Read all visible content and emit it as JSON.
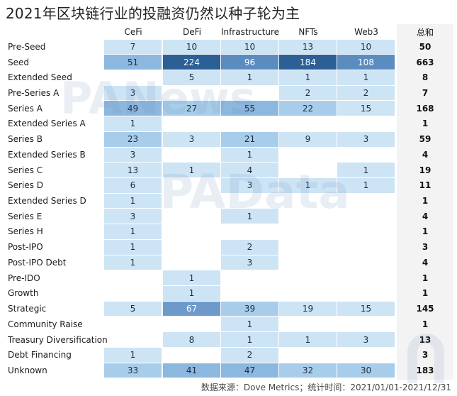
{
  "title": "2021年区块链行业的投融资仍然以种子轮为主",
  "footer": "数据来源：Dove Metrics；统计时间：2021/01/01-2021/12/31",
  "total_label": "总和",
  "watermarks": [
    "PANews",
    "PAData"
  ],
  "colors": {
    "low": "#cfe6f6",
    "mid": "#9ec8e8",
    "high": "#5b8cc0",
    "max": "#2b5f95",
    "total_bg": "#f3f3f3"
  },
  "chart_data": {
    "type": "heatmap",
    "title": "2021年区块链行业的投融资仍然以种子轮为主",
    "columns": [
      "CeFi",
      "DeFi",
      "Infrastructure",
      "NFTs",
      "Web3"
    ],
    "rows": [
      "Pre-Seed",
      "Seed",
      "Extended Seed",
      "Pre-Series A",
      "Series A",
      "Extended Series A",
      "Series B",
      "Extended Series B",
      "Series C",
      "Series D",
      "Extended Series D",
      "Series E",
      "Series H",
      "Post-IPO",
      "Post-IPO Debt",
      "Pre-IDO",
      "Growth",
      "Strategic",
      "Community Raise",
      "Treasury Diversification",
      "Debt Financing",
      "Unknown"
    ],
    "values": [
      [
        7,
        10,
        10,
        13,
        10
      ],
      [
        51,
        224,
        96,
        184,
        108
      ],
      [
        null,
        5,
        1,
        1,
        1
      ],
      [
        3,
        null,
        null,
        2,
        2
      ],
      [
        49,
        27,
        55,
        22,
        15
      ],
      [
        1,
        null,
        null,
        null,
        null
      ],
      [
        23,
        3,
        21,
        9,
        3
      ],
      [
        3,
        null,
        1,
        null,
        null
      ],
      [
        13,
        1,
        4,
        null,
        1
      ],
      [
        6,
        null,
        3,
        1,
        1
      ],
      [
        1,
        null,
        null,
        null,
        null
      ],
      [
        3,
        null,
        1,
        null,
        null
      ],
      [
        1,
        null,
        null,
        null,
        null
      ],
      [
        1,
        null,
        2,
        null,
        null
      ],
      [
        1,
        null,
        3,
        null,
        null
      ],
      [
        null,
        1,
        null,
        null,
        null
      ],
      [
        null,
        1,
        null,
        null,
        null
      ],
      [
        5,
        67,
        39,
        19,
        15
      ],
      [
        null,
        null,
        1,
        null,
        null
      ],
      [
        null,
        8,
        1,
        1,
        3
      ],
      [
        1,
        null,
        2,
        null,
        null
      ],
      [
        33,
        41,
        47,
        32,
        30
      ]
    ],
    "totals": [
      50,
      663,
      8,
      7,
      168,
      1,
      59,
      4,
      19,
      11,
      1,
      4,
      1,
      3,
      4,
      1,
      1,
      145,
      1,
      13,
      3,
      183
    ],
    "source": "数据来源：Dove Metrics；统计时间：2021/01/01-2021/12/31"
  }
}
